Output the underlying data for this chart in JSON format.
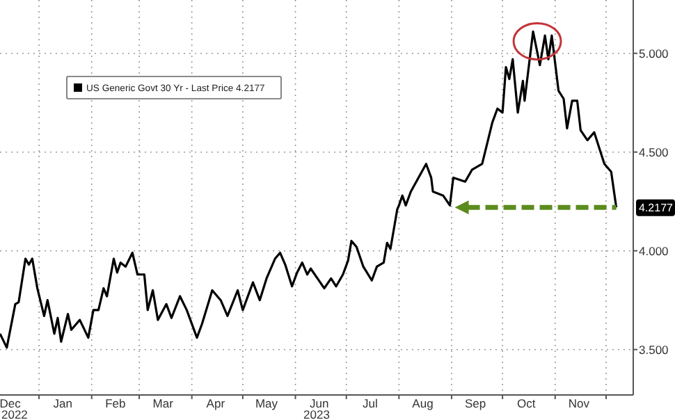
{
  "chart_data": {
    "type": "line",
    "legend": "top left",
    "grid": true,
    "marker": "none",
    "line_style": "solid",
    "xlim": [
      "2022-12-09",
      "2023-12-17"
    ],
    "ylim": [
      3.27,
      5.27
    ],
    "yticks": [
      {
        "value": 3.5,
        "label": "3.500"
      },
      {
        "value": 4,
        "label": "4.000"
      },
      {
        "value": 4.5,
        "label": "4.500"
      },
      {
        "value": 5,
        "label": "5.000"
      }
    ],
    "xticks": [
      {
        "value": "2022-12-15",
        "label": "Dec"
      },
      {
        "value": "2023-01-01",
        "label": null
      },
      {
        "value": "2023-01-15",
        "label": "Jan"
      },
      {
        "value": "2023-02-01",
        "label": null
      },
      {
        "value": "2023-02-15",
        "label": "Feb"
      },
      {
        "value": "2023-03-01",
        "label": null
      },
      {
        "value": "2023-03-15",
        "label": "Mar"
      },
      {
        "value": "2023-04-01",
        "label": null
      },
      {
        "value": "2023-04-15",
        "label": "Apr"
      },
      {
        "value": "2023-05-01",
        "label": null
      },
      {
        "value": "2023-05-15",
        "label": "May"
      },
      {
        "value": "2023-06-01",
        "label": null
      },
      {
        "value": "2023-06-15",
        "label": "Jun"
      },
      {
        "value": "2023-07-01",
        "label": null
      },
      {
        "value": "2023-07-15",
        "label": "Jul"
      },
      {
        "value": "2023-08-01",
        "label": null
      },
      {
        "value": "2023-08-15",
        "label": "Aug"
      },
      {
        "value": "2023-09-01",
        "label": null
      },
      {
        "value": "2023-09-15",
        "label": "Sep"
      },
      {
        "value": "2023-10-01",
        "label": null
      },
      {
        "value": "2023-10-15",
        "label": "Oct"
      },
      {
        "value": "2023-11-01",
        "label": null
      },
      {
        "value": "2023-11-15",
        "label": "Nov"
      },
      {
        "value": "2023-12-01",
        "label": null
      }
    ],
    "annotations": [
      {
        "text": "4.2177",
        "x": "2023-12-07",
        "y": 4.2177
      },
      "2022",
      "2023"
    ],
    "series": [
      {
        "name": "US Generic Govt 30 Yr - Last Price 4.2177",
        "color": "#000000",
        "x": [
          "2022-12-09",
          "2022-12-13",
          "2022-12-18",
          "2022-12-20",
          "2022-12-24",
          "2022-12-26",
          "2022-12-28",
          "2022-12-31",
          "2023-01-04",
          "2023-01-06",
          "2023-01-10",
          "2023-01-12",
          "2023-01-14",
          "2023-01-18",
          "2023-01-20",
          "2023-01-23",
          "2023-01-25",
          "2023-01-30",
          "2023-02-02",
          "2023-02-05",
          "2023-02-08",
          "2023-02-10",
          "2023-02-14",
          "2023-02-16",
          "2023-02-18",
          "2023-02-21",
          "2023-02-25",
          "2023-02-28",
          "2023-03-04",
          "2023-03-06",
          "2023-03-09",
          "2023-03-12",
          "2023-03-17",
          "2023-03-20",
          "2023-03-25",
          "2023-03-29",
          "2023-04-04",
          "2023-04-07",
          "2023-04-13",
          "2023-04-18",
          "2023-04-22",
          "2023-04-28",
          "2023-05-01",
          "2023-05-07",
          "2023-05-11",
          "2023-05-15",
          "2023-05-20",
          "2023-05-23",
          "2023-05-26",
          "2023-05-30",
          "2023-06-02",
          "2023-06-05",
          "2023-06-08",
          "2023-06-10",
          "2023-06-14",
          "2023-06-18",
          "2023-06-22",
          "2023-06-25",
          "2023-06-29",
          "2023-07-02",
          "2023-07-04",
          "2023-07-07",
          "2023-07-11",
          "2023-07-16",
          "2023-07-19",
          "2023-07-23",
          "2023-07-25",
          "2023-07-27",
          "2023-07-31",
          "2023-08-01",
          "2023-08-03",
          "2023-08-05",
          "2023-08-08",
          "2023-08-17",
          "2023-08-20",
          "2023-08-21",
          "2023-08-27",
          "2023-08-31",
          "2023-09-02",
          "2023-09-09",
          "2023-09-13",
          "2023-09-19",
          "2023-09-21",
          "2023-09-25",
          "2023-09-28",
          "2023-10-01",
          "2023-10-03",
          "2023-10-05",
          "2023-10-07",
          "2023-10-10",
          "2023-10-13",
          "2023-10-14",
          "2023-10-19",
          "2023-10-23",
          "2023-10-26",
          "2023-10-28",
          "2023-10-30",
          "2023-11-03",
          "2023-11-06",
          "2023-11-08",
          "2023-11-11",
          "2023-11-14",
          "2023-11-16",
          "2023-11-20",
          "2023-11-24",
          "2023-11-30",
          "2023-12-04",
          "2023-12-07"
        ],
        "values": [
          3.58,
          3.51,
          3.73,
          3.74,
          3.96,
          3.93,
          3.96,
          3.81,
          3.67,
          3.75,
          3.58,
          3.66,
          3.54,
          3.68,
          3.6,
          3.63,
          3.65,
          3.56,
          3.7,
          3.7,
          3.81,
          3.77,
          3.96,
          3.89,
          3.94,
          3.92,
          3.99,
          3.88,
          3.88,
          3.7,
          3.8,
          3.65,
          3.73,
          3.66,
          3.77,
          3.7,
          3.56,
          3.63,
          3.8,
          3.75,
          3.67,
          3.8,
          3.7,
          3.84,
          3.75,
          3.86,
          3.96,
          3.99,
          3.93,
          3.82,
          3.89,
          3.94,
          3.88,
          3.91,
          3.86,
          3.81,
          3.86,
          3.82,
          3.88,
          3.95,
          4.05,
          4.02,
          3.92,
          3.85,
          3.92,
          3.94,
          4.04,
          4.01,
          4.21,
          4.23,
          4.28,
          4.23,
          4.3,
          4.44,
          4.37,
          4.3,
          4.28,
          4.23,
          4.37,
          4.35,
          4.41,
          4.44,
          4.51,
          4.65,
          4.72,
          4.7,
          4.93,
          4.87,
          4.97,
          4.7,
          4.86,
          4.76,
          5.11,
          4.94,
          5.09,
          4.97,
          5.09,
          4.81,
          4.77,
          4.62,
          4.76,
          4.76,
          4.61,
          4.56,
          4.6,
          4.44,
          4.4,
          4.22
        ]
      }
    ]
  }
}
